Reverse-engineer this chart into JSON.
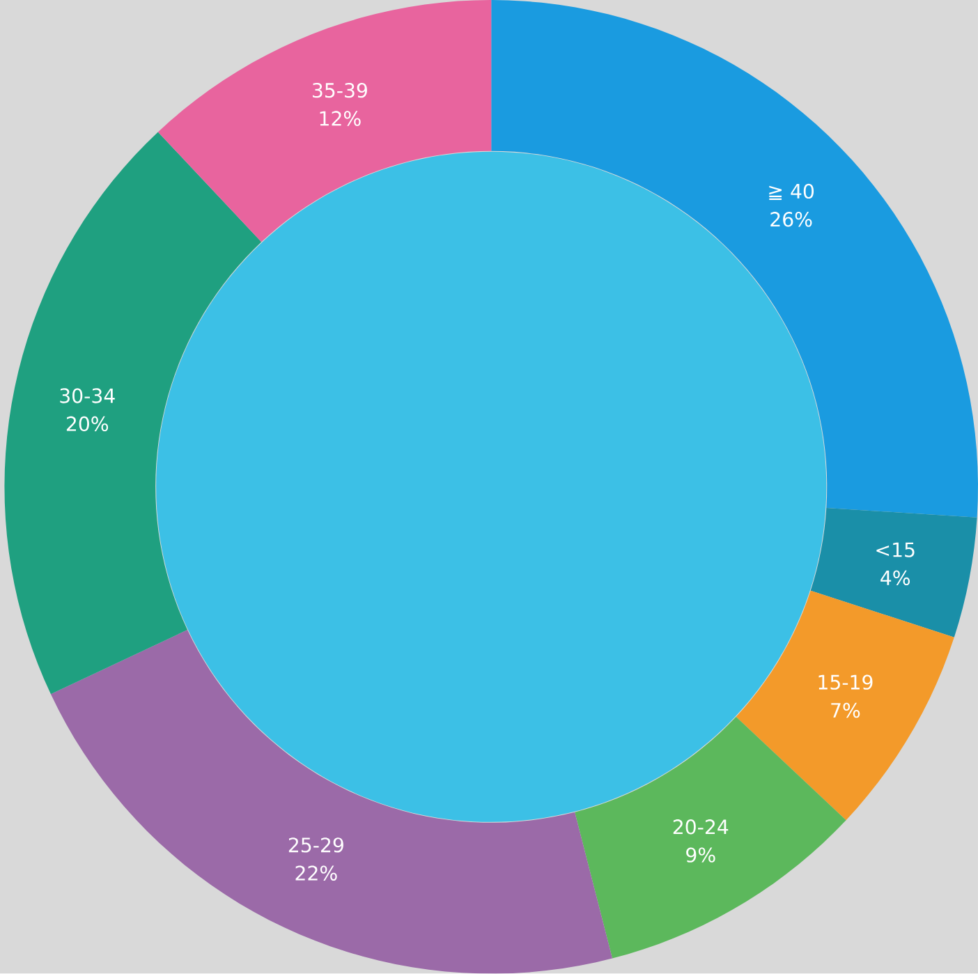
{
  "chart_data": {
    "type": "donut",
    "categories": [
      "≧ 40",
      "<15",
      "15-19",
      "20-24",
      "25-29",
      "30-34",
      "35-39"
    ],
    "values": [
      26,
      4,
      7,
      9,
      22,
      20,
      12
    ],
    "value_labels": [
      "26%",
      "4%",
      "7%",
      "9%",
      "22%",
      "20%",
      "12%"
    ],
    "colors": [
      "#1a9be0",
      "#1a8fa8",
      "#f39a2a",
      "#5cb85c",
      "#9b6aa8",
      "#1fa080",
      "#e8649e"
    ]
  }
}
